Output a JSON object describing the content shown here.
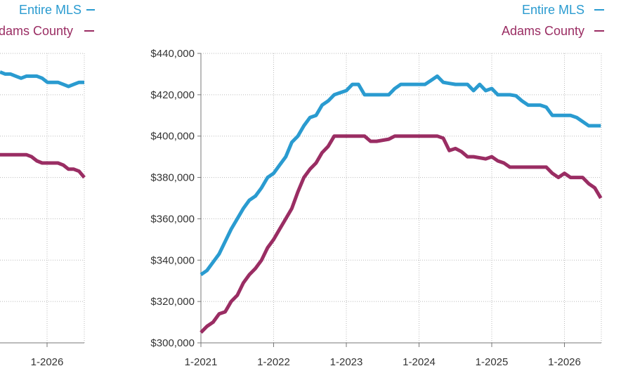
{
  "colors": {
    "entire_mls": "#2a9bd0",
    "adams_county": "#9a2d63",
    "grid": "#bbbbbb",
    "axis": "#777777"
  },
  "chart_data": [
    {
      "type": "line",
      "note_visibility": "partially cropped left panel",
      "title": "",
      "xlabel": "",
      "ylabel": "",
      "x_ticks": [
        "1-2026"
      ],
      "grid": true,
      "legend": {
        "placement": "top-right",
        "entries": [
          "Entire MLS",
          "Adams County"
        ]
      },
      "series": [
        {
          "name": "Entire MLS",
          "color": "#2a9bd0",
          "values": [
            431,
            430,
            430,
            429,
            428,
            429,
            429,
            429,
            428,
            426,
            426,
            426,
            425,
            424,
            425,
            426,
            426
          ]
        },
        {
          "name": "Adams County",
          "color": "#9a2d63",
          "values": [
            391,
            391,
            391,
            391,
            391,
            391,
            390,
            388,
            387,
            387,
            387,
            387,
            386,
            384,
            384,
            383,
            380
          ]
        }
      ]
    },
    {
      "type": "line",
      "title": "",
      "xlabel": "",
      "ylabel": "",
      "x": [
        "1-2021",
        "2-2021",
        "3-2021",
        "4-2021",
        "5-2021",
        "6-2021",
        "7-2021",
        "8-2021",
        "9-2021",
        "10-2021",
        "11-2021",
        "12-2021",
        "1-2022",
        "2-2022",
        "3-2022",
        "4-2022",
        "5-2022",
        "6-2022",
        "7-2022",
        "8-2022",
        "9-2022",
        "10-2022",
        "11-2022",
        "12-2022",
        "1-2023",
        "2-2023",
        "3-2023",
        "4-2023",
        "5-2023",
        "6-2023",
        "7-2023",
        "8-2023",
        "9-2023",
        "10-2023",
        "11-2023",
        "12-2023",
        "1-2024",
        "2-2024",
        "3-2024",
        "4-2024",
        "5-2024",
        "6-2024",
        "7-2024",
        "8-2024",
        "9-2024",
        "10-2024",
        "11-2024",
        "12-2024",
        "1-2025",
        "2-2025",
        "3-2025",
        "4-2025",
        "5-2025",
        "6-2025",
        "7-2025",
        "8-2025",
        "9-2025",
        "10-2025",
        "11-2025",
        "12-2025",
        "1-2026",
        "2-2026",
        "3-2026",
        "4-2026",
        "5-2026",
        "6-2026",
        "7-2026"
      ],
      "x_ticks": [
        "1-2021",
        "1-2022",
        "1-2023",
        "1-2024",
        "1-2025",
        "1-2026"
      ],
      "y_ticks": [
        "$300,000",
        "$320,000",
        "$340,000",
        "$360,000",
        "$380,000",
        "$400,000",
        "$420,000",
        "$440,000"
      ],
      "ylim": [
        300000,
        440000
      ],
      "grid": true,
      "legend": {
        "placement": "top-right",
        "entries": [
          "Entire MLS",
          "Adams County"
        ]
      },
      "series": [
        {
          "name": "Entire MLS",
          "color": "#2a9bd0",
          "values": [
            333000,
            335000,
            339000,
            343000,
            349000,
            355000,
            360000,
            365000,
            369000,
            371000,
            375000,
            380000,
            382000,
            386000,
            390000,
            397000,
            400000,
            405000,
            409000,
            410000,
            415000,
            417000,
            420000,
            421000,
            422000,
            425000,
            425000,
            420000,
            420000,
            420000,
            420000,
            420000,
            423000,
            425000,
            425000,
            425000,
            425000,
            425000,
            427000,
            429000,
            426000,
            425500,
            425000,
            425000,
            425000,
            422000,
            425000,
            422000,
            423000,
            420000,
            420000,
            420000,
            419500,
            417000,
            415000,
            415000,
            415000,
            414000,
            410000,
            410000,
            410000,
            410000,
            409000,
            407000,
            405000,
            405000,
            405000
          ]
        },
        {
          "name": "Adams County",
          "color": "#9a2d63",
          "values": [
            305000,
            308000,
            310000,
            314000,
            315000,
            320000,
            323000,
            329000,
            333000,
            336000,
            340000,
            346000,
            350000,
            355000,
            360000,
            365000,
            373000,
            380000,
            384000,
            387000,
            392000,
            395000,
            400000,
            400000,
            400000,
            400000,
            400000,
            400000,
            397500,
            397500,
            398000,
            398500,
            400000,
            400000,
            400000,
            400000,
            400000,
            400000,
            400000,
            400000,
            399000,
            393000,
            394000,
            392500,
            390000,
            390000,
            389500,
            389000,
            390000,
            388000,
            387000,
            385000,
            385000,
            385000,
            385000,
            385000,
            385000,
            385000,
            382000,
            380000,
            382000,
            380000,
            380000,
            380000,
            377000,
            375000,
            370000
          ]
        }
      ]
    }
  ]
}
